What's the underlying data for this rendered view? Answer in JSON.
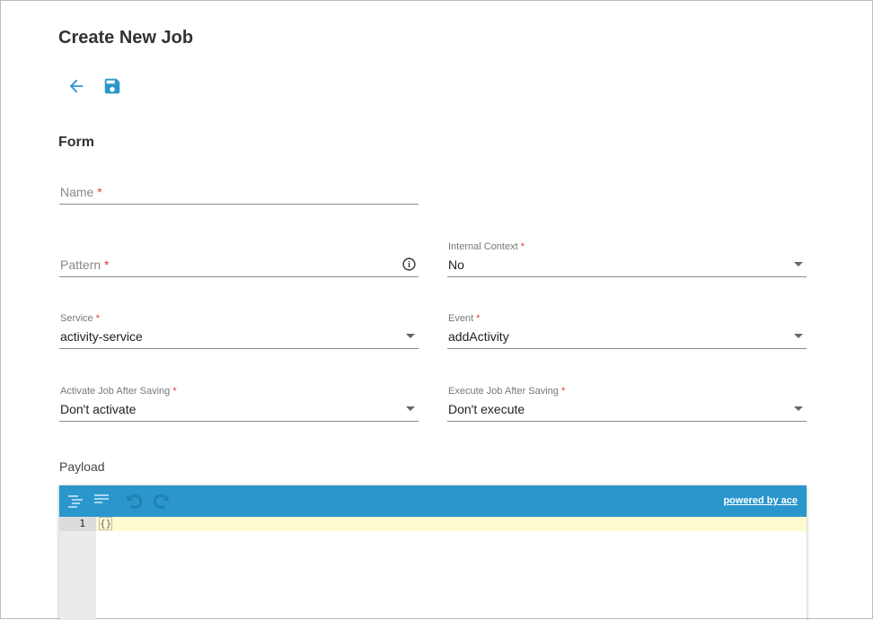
{
  "page": {
    "title": "Create New Job",
    "section": "Form"
  },
  "icons": {
    "back": "arrow-left-icon",
    "save": "floppy-disk-icon"
  },
  "fields": {
    "name": {
      "label": "Name",
      "required": "*"
    },
    "pattern": {
      "label": "Pattern",
      "required": "*"
    },
    "internal_context": {
      "label": "Internal Context",
      "required": "*",
      "value": "No"
    },
    "service": {
      "label": "Service",
      "required": "*",
      "value": "activity-service"
    },
    "event": {
      "label": "Event",
      "required": "*",
      "value": "addActivity"
    },
    "activate": {
      "label": "Activate Job After Saving",
      "required": "*",
      "value": "Don't activate"
    },
    "execute": {
      "label": "Execute Job After Saving",
      "required": "*",
      "value": "Don't execute"
    }
  },
  "payload": {
    "label": "Payload",
    "powered_by": "powered by ace",
    "line_number": "1",
    "content": "{}"
  },
  "colors": {
    "accent": "#2b96cc",
    "required": "#e53935"
  }
}
